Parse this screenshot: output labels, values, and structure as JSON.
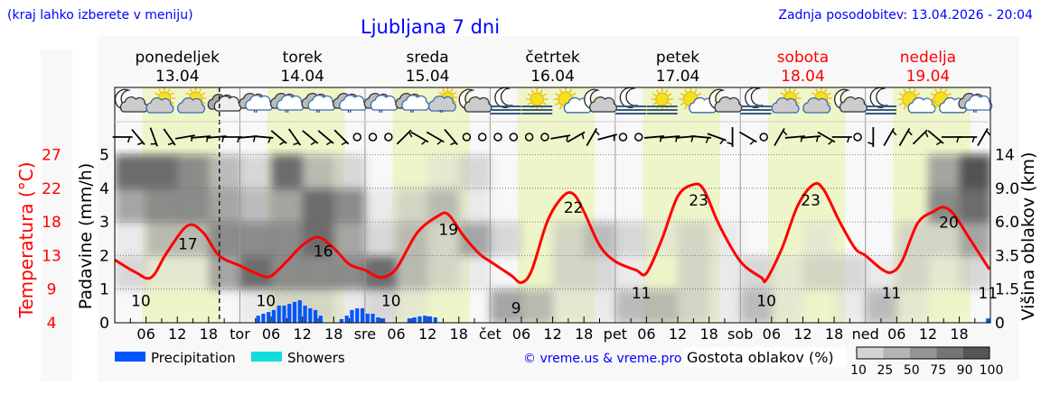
{
  "header": {
    "hint": "(kraj lahko izberete v meniju)",
    "title": "Ljubljana 7 dni",
    "updated": "Zadnja posodobitev: 13.04.2026 - 20:04"
  },
  "colors": {
    "text_blue": "#0000ff",
    "weekend": "#ff0000",
    "temperature": "#ff0000",
    "precipitation": "#0055ff",
    "showers": "#11dddd",
    "daylight": "#eef5c8",
    "panel": "#f8f8f8"
  },
  "days": [
    {
      "name": "ponedeljek",
      "date": "13.04",
      "abbr": "",
      "weekend": false
    },
    {
      "name": "torek",
      "date": "14.04",
      "abbr": "tor",
      "weekend": false
    },
    {
      "name": "sreda",
      "date": "15.04",
      "abbr": "sre",
      "weekend": false
    },
    {
      "name": "četrtek",
      "date": "16.04",
      "abbr": "čet",
      "weekend": false
    },
    {
      "name": "petek",
      "date": "17.04",
      "abbr": "pet",
      "weekend": false
    },
    {
      "name": "sobota",
      "date": "18.04",
      "abbr": "sob",
      "weekend": true
    },
    {
      "name": "nedelja",
      "date": "19.04",
      "abbr": "ned",
      "weekend": true
    }
  ],
  "weather_icons": [
    "moon-cloud",
    "sun-cloud",
    "sun-cloud",
    "cloud",
    "cloud-rain",
    "cloud-rain",
    "cloud-rain",
    "cloud-rain",
    "cloud-rain",
    "cloud-rain",
    "sun-cloud-rain",
    "moon-cloud",
    "moon-fog",
    "sun-fog",
    "sun-small-cloud",
    "moon-cloud",
    "moon-fog",
    "sun-fog",
    "sun-small-cloud",
    "moon-cloud",
    "moon-fog",
    "sun-cloud",
    "sun-cloud",
    "moon-cloud",
    "moon-fog",
    "sun-small-cloud",
    "sun-small-cloud",
    "cloud-rain"
  ],
  "wind_directions_deg": [
    0,
    50,
    70,
    55,
    -10,
    -5,
    -5,
    0,
    -5,
    5,
    40,
    55,
    40,
    40,
    45,
    null,
    null,
    null,
    -45,
    30,
    30,
    50,
    null,
    null,
    null,
    null,
    null,
    null,
    -10,
    -30,
    -60,
    -15,
    null,
    null,
    -5,
    -5,
    -5,
    5,
    20,
    90,
    30,
    null,
    -60,
    -5,
    -5,
    30,
    0,
    null,
    90,
    -60,
    -60,
    -45,
    40,
    0,
    0,
    -60
  ],
  "chart_data": {
    "type": "line",
    "title": "Ljubljana 7 dni",
    "x_tick_hours": [
      "06",
      "12",
      "18"
    ],
    "left_axis": {
      "label": "Padavine (mm/h)",
      "range": [
        0,
        5.5
      ],
      "ticks": [
        0,
        1,
        2,
        3,
        4,
        5
      ]
    },
    "temperature_axis": {
      "label": "Temperatura (°C)",
      "ticks": [
        4,
        9,
        13,
        18,
        22,
        27
      ]
    },
    "right_axis": {
      "label": "Višina oblakov (km)",
      "ticks": [
        "0",
        "1.5",
        "3.5",
        "6.0",
        "9.0",
        "14"
      ]
    },
    "now_marker": {
      "day": "13.04",
      "hour": 20.07
    },
    "daylight_hours": [
      5.3,
      20.1
    ],
    "temperature": [
      {
        "day": 0,
        "hour": 0,
        "t": 12.6
      },
      {
        "day": 0,
        "hour": 4,
        "t": 10.9
      },
      {
        "day": 0,
        "hour": 7,
        "t": 10.2
      },
      {
        "day": 0,
        "hour": 10,
        "t": 13.6
      },
      {
        "day": 0,
        "hour": 14,
        "t": 17.3
      },
      {
        "day": 0,
        "hour": 17,
        "t": 16.3
      },
      {
        "day": 0,
        "hour": 20,
        "t": 13.2
      },
      {
        "day": 1,
        "hour": 0,
        "t": 11.8
      },
      {
        "day": 1,
        "hour": 4,
        "t": 10.5
      },
      {
        "day": 1,
        "hour": 6,
        "t": 10.4
      },
      {
        "day": 1,
        "hour": 9,
        "t": 12.4
      },
      {
        "day": 1,
        "hour": 12,
        "t": 14.6
      },
      {
        "day": 1,
        "hour": 15,
        "t": 15.7
      },
      {
        "day": 1,
        "hour": 18,
        "t": 14.2
      },
      {
        "day": 1,
        "hour": 21,
        "t": 12.0
      },
      {
        "day": 2,
        "hour": 0,
        "t": 11.2
      },
      {
        "day": 2,
        "hour": 3,
        "t": 10.2
      },
      {
        "day": 2,
        "hour": 6,
        "t": 11.4
      },
      {
        "day": 2,
        "hour": 10,
        "t": 16.3
      },
      {
        "day": 2,
        "hour": 14,
        "t": 18.6
      },
      {
        "day": 2,
        "hour": 16,
        "t": 18.8
      },
      {
        "day": 2,
        "hour": 19,
        "t": 15.8
      },
      {
        "day": 2,
        "hour": 22,
        "t": 13.4
      },
      {
        "day": 3,
        "hour": 0,
        "t": 12.4
      },
      {
        "day": 3,
        "hour": 4,
        "t": 10.5
      },
      {
        "day": 3,
        "hour": 6,
        "t": 9.5
      },
      {
        "day": 3,
        "hour": 8,
        "t": 11.2
      },
      {
        "day": 3,
        "hour": 11,
        "t": 17.9
      },
      {
        "day": 3,
        "hour": 14,
        "t": 21.3
      },
      {
        "day": 3,
        "hour": 16,
        "t": 21.6
      },
      {
        "day": 3,
        "hour": 18,
        "t": 19.2
      },
      {
        "day": 3,
        "hour": 21,
        "t": 14.6
      },
      {
        "day": 4,
        "hour": 0,
        "t": 12.4
      },
      {
        "day": 4,
        "hour": 4,
        "t": 11.2
      },
      {
        "day": 4,
        "hour": 6,
        "t": 10.8
      },
      {
        "day": 4,
        "hour": 9,
        "t": 15.5
      },
      {
        "day": 4,
        "hour": 12,
        "t": 21.3
      },
      {
        "day": 4,
        "hour": 15,
        "t": 22.9
      },
      {
        "day": 4,
        "hour": 17,
        "t": 22.2
      },
      {
        "day": 4,
        "hour": 20,
        "t": 17.3
      },
      {
        "day": 5,
        "hour": 0,
        "t": 12.4
      },
      {
        "day": 5,
        "hour": 4,
        "t": 10.2
      },
      {
        "day": 5,
        "hour": 5,
        "t": 9.9
      },
      {
        "day": 5,
        "hour": 8,
        "t": 14.2
      },
      {
        "day": 5,
        "hour": 11,
        "t": 20.0
      },
      {
        "day": 5,
        "hour": 14,
        "t": 22.9
      },
      {
        "day": 5,
        "hour": 16,
        "t": 22.2
      },
      {
        "day": 5,
        "hour": 19,
        "t": 17.9
      },
      {
        "day": 5,
        "hour": 22,
        "t": 14.2
      },
      {
        "day": 6,
        "hour": 0,
        "t": 13.2
      },
      {
        "day": 6,
        "hour": 3,
        "t": 11.4
      },
      {
        "day": 6,
        "hour": 5,
        "t": 10.9
      },
      {
        "day": 6,
        "hour": 7,
        "t": 12.4
      },
      {
        "day": 6,
        "hour": 10,
        "t": 17.6
      },
      {
        "day": 6,
        "hour": 13,
        "t": 19.2
      },
      {
        "day": 6,
        "hour": 15,
        "t": 19.8
      },
      {
        "day": 6,
        "hour": 17,
        "t": 18.8
      },
      {
        "day": 6,
        "hour": 20,
        "t": 15.5
      },
      {
        "day": 6,
        "hour": 23.8,
        "t": 11.3
      }
    ],
    "temperature_labels": [
      {
        "day": 0,
        "hour": 5,
        "value": "10",
        "kind": "min"
      },
      {
        "day": 0,
        "hour": 14,
        "value": "17",
        "kind": "max"
      },
      {
        "day": 1,
        "hour": 5,
        "value": "10",
        "kind": "min"
      },
      {
        "day": 1,
        "hour": 16,
        "value": "16",
        "kind": "max"
      },
      {
        "day": 2,
        "hour": 5,
        "value": "10",
        "kind": "min"
      },
      {
        "day": 2,
        "hour": 16,
        "value": "19",
        "kind": "max"
      },
      {
        "day": 3,
        "hour": 5,
        "value": "9",
        "kind": "min"
      },
      {
        "day": 3,
        "hour": 16,
        "value": "22",
        "kind": "max"
      },
      {
        "day": 4,
        "hour": 5,
        "value": "11",
        "kind": "min"
      },
      {
        "day": 4,
        "hour": 16,
        "value": "23",
        "kind": "max"
      },
      {
        "day": 5,
        "hour": 5,
        "value": "10",
        "kind": "min"
      },
      {
        "day": 5,
        "hour": 13.5,
        "value": "23",
        "kind": "max"
      },
      {
        "day": 6,
        "hour": 5,
        "value": "11",
        "kind": "min"
      },
      {
        "day": 6,
        "hour": 16,
        "value": "20",
        "kind": "max"
      },
      {
        "day": 6,
        "hour": 23.5,
        "value": "11",
        "kind": "min"
      }
    ],
    "precipitation_mm": [
      {
        "day": 1,
        "hour": 3,
        "mm": 0.21
      },
      {
        "day": 1,
        "hour": 4,
        "mm": 0.27
      },
      {
        "day": 1,
        "hour": 5,
        "mm": 0.32
      },
      {
        "day": 1,
        "hour": 6,
        "mm": 0.38
      },
      {
        "day": 1,
        "hour": 7,
        "mm": 0.51
      },
      {
        "day": 1,
        "hour": 8,
        "mm": 0.51
      },
      {
        "day": 1,
        "hour": 9,
        "mm": 0.56
      },
      {
        "day": 1,
        "hour": 10,
        "mm": 0.62
      },
      {
        "day": 1,
        "hour": 11,
        "mm": 0.67
      },
      {
        "day": 1,
        "hour": 12,
        "mm": 0.51
      },
      {
        "day": 1,
        "hour": 13,
        "mm": 0.43
      },
      {
        "day": 1,
        "hour": 14,
        "mm": 0.38
      },
      {
        "day": 1,
        "hour": 15,
        "mm": 0.21
      },
      {
        "day": 1,
        "hour": 19,
        "mm": 0.11
      },
      {
        "day": 1,
        "hour": 20,
        "mm": 0.21
      },
      {
        "day": 1,
        "hour": 21,
        "mm": 0.38
      },
      {
        "day": 1,
        "hour": 22,
        "mm": 0.43
      },
      {
        "day": 1,
        "hour": 23,
        "mm": 0.43
      },
      {
        "day": 2,
        "hour": 0,
        "mm": 0.27
      },
      {
        "day": 2,
        "hour": 1,
        "mm": 0.27
      },
      {
        "day": 2,
        "hour": 2,
        "mm": 0.16
      },
      {
        "day": 2,
        "hour": 3,
        "mm": 0.13
      },
      {
        "day": 2,
        "hour": 8,
        "mm": 0.13
      },
      {
        "day": 2,
        "hour": 9,
        "mm": 0.16
      },
      {
        "day": 2,
        "hour": 10,
        "mm": 0.19
      },
      {
        "day": 2,
        "hour": 11,
        "mm": 0.21
      },
      {
        "day": 2,
        "hour": 12,
        "mm": 0.19
      },
      {
        "day": 2,
        "hour": 13,
        "mm": 0.16
      },
      {
        "day": 6,
        "hour": 23,
        "mm": 0.13
      }
    ],
    "cloud_density_pct": {
      "columns_every_hours": 6,
      "bands_axis_units": [
        "0-1",
        "1-2",
        "2-3",
        "3-4",
        "4-5"
      ],
      "values": [
        [
          0,
          25,
          10,
          50,
          75
        ],
        [
          0,
          10,
          40,
          60,
          75
        ],
        [
          0,
          10,
          40,
          60,
          60
        ],
        [
          0,
          50,
          60,
          50,
          40
        ],
        [
          10,
          75,
          60,
          40,
          25
        ],
        [
          25,
          60,
          60,
          50,
          75
        ],
        [
          25,
          60,
          75,
          75,
          40
        ],
        [
          10,
          60,
          50,
          60,
          25
        ],
        [
          25,
          75,
          25,
          10,
          0
        ],
        [
          10,
          40,
          40,
          25,
          0
        ],
        [
          0,
          25,
          25,
          40,
          10
        ],
        [
          0,
          10,
          50,
          10,
          25
        ],
        [
          50,
          0,
          25,
          0,
          0
        ],
        [
          40,
          0,
          0,
          0,
          0
        ],
        [
          10,
          25,
          25,
          0,
          0
        ],
        [
          10,
          25,
          40,
          0,
          0
        ],
        [
          40,
          10,
          25,
          0,
          0
        ],
        [
          40,
          0,
          10,
          0,
          0
        ],
        [
          25,
          25,
          25,
          0,
          0
        ],
        [
          10,
          10,
          10,
          0,
          0
        ],
        [
          40,
          25,
          0,
          0,
          0
        ],
        [
          10,
          10,
          0,
          0,
          0
        ],
        [
          0,
          25,
          10,
          0,
          0
        ],
        [
          10,
          25,
          0,
          0,
          0
        ],
        [
          40,
          10,
          0,
          0,
          0
        ],
        [
          10,
          25,
          25,
          0,
          0
        ],
        [
          0,
          10,
          25,
          60,
          50
        ],
        [
          0,
          25,
          50,
          75,
          90
        ]
      ]
    },
    "legend": {
      "precipitation": "Precipitation",
      "showers": "Showers",
      "cloud_density_title": "Gostota oblakov (%)",
      "cloud_density_levels": [
        "10",
        "25",
        "50",
        "75",
        "90",
        "100"
      ],
      "cloud_density_colors": [
        "#d4d4d4",
        "#b4b4b4",
        "#949494",
        "#757575",
        "#555555"
      ]
    }
  },
  "credit": "© vreme.us & vreme.pro"
}
